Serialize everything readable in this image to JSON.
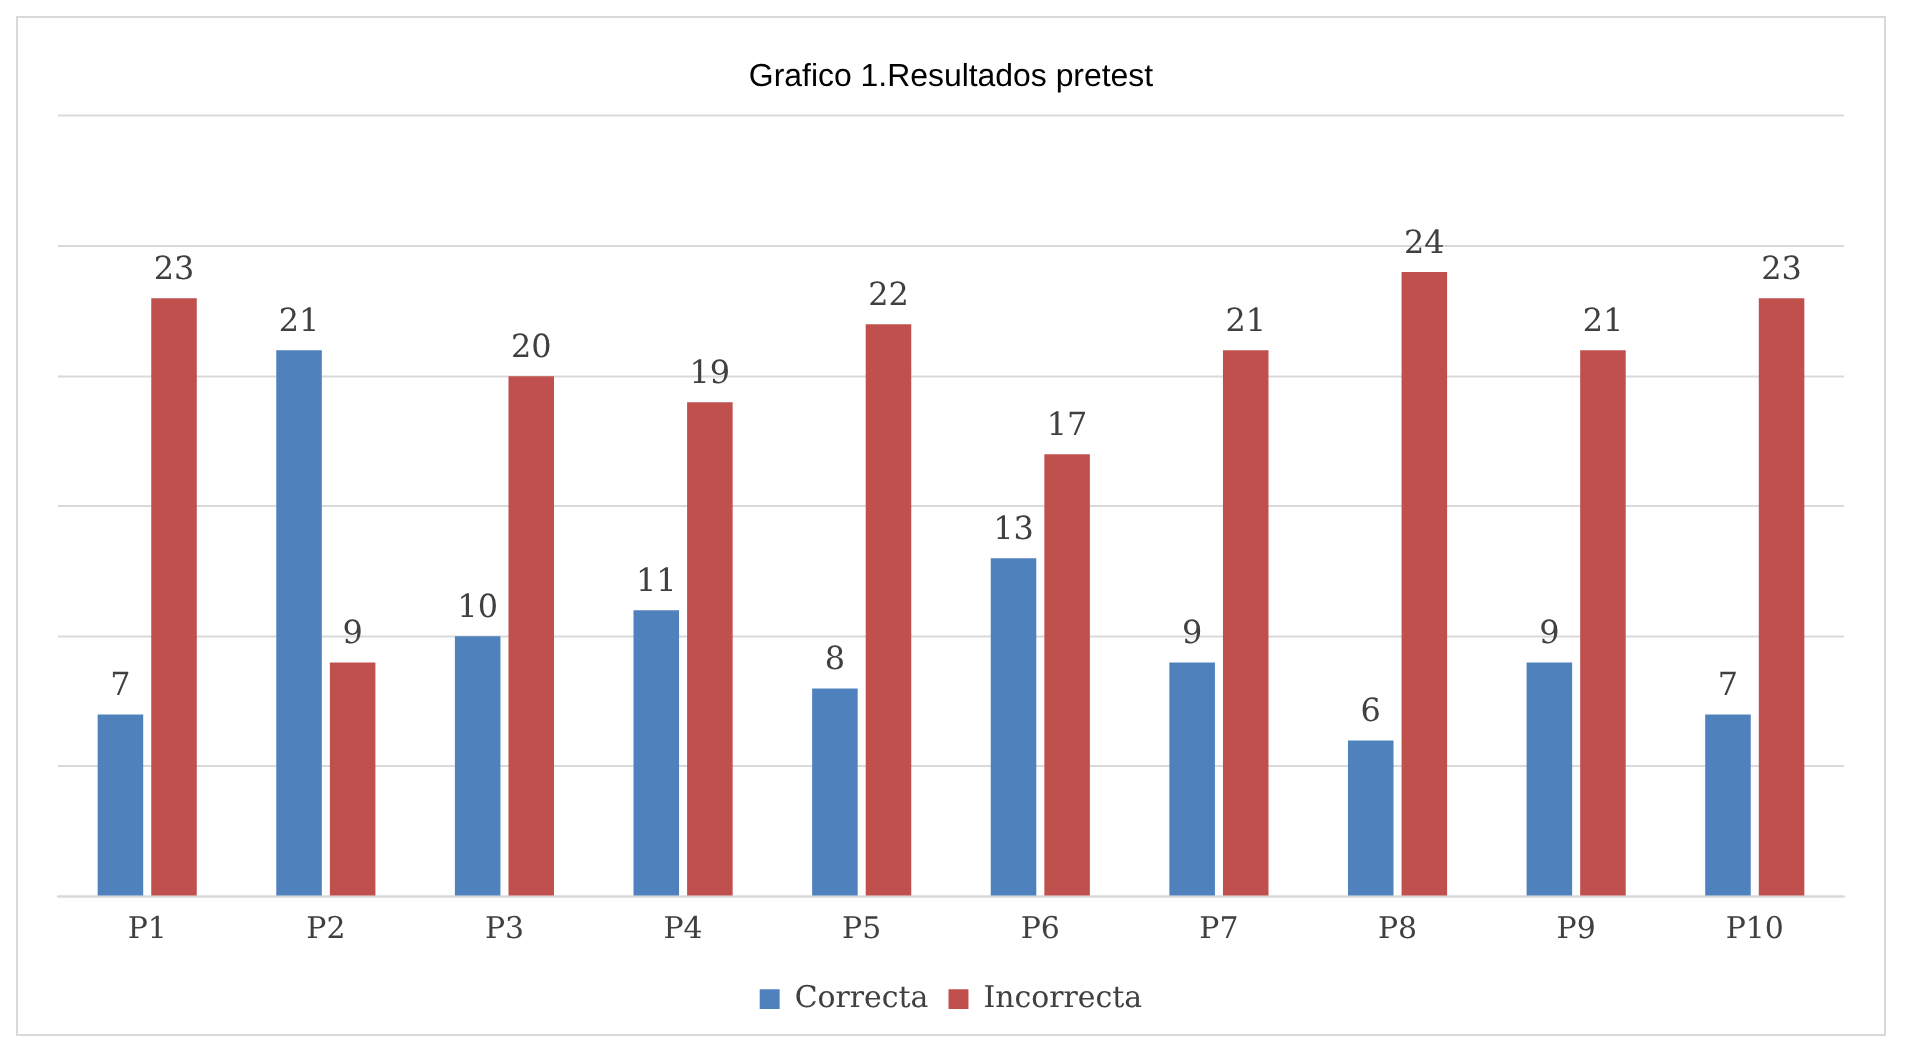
{
  "chart_data": {
    "type": "bar",
    "title": "Grafico 1.Resultados pretest",
    "categories": [
      "P1",
      "P2",
      "P3",
      "P4",
      "P5",
      "P6",
      "P7",
      "P8",
      "P9",
      "P10"
    ],
    "series": [
      {
        "name": "Correcta",
        "color": "#4f81bd",
        "values": [
          7,
          21,
          10,
          11,
          8,
          13,
          9,
          6,
          9,
          7
        ]
      },
      {
        "name": "Incorrecta",
        "color": "#c0504d",
        "values": [
          23,
          9,
          20,
          19,
          22,
          17,
          21,
          24,
          21,
          23
        ]
      }
    ],
    "grid": "y",
    "legend": "bottom",
    "tick_labels": "x",
    "data_labels": true
  }
}
